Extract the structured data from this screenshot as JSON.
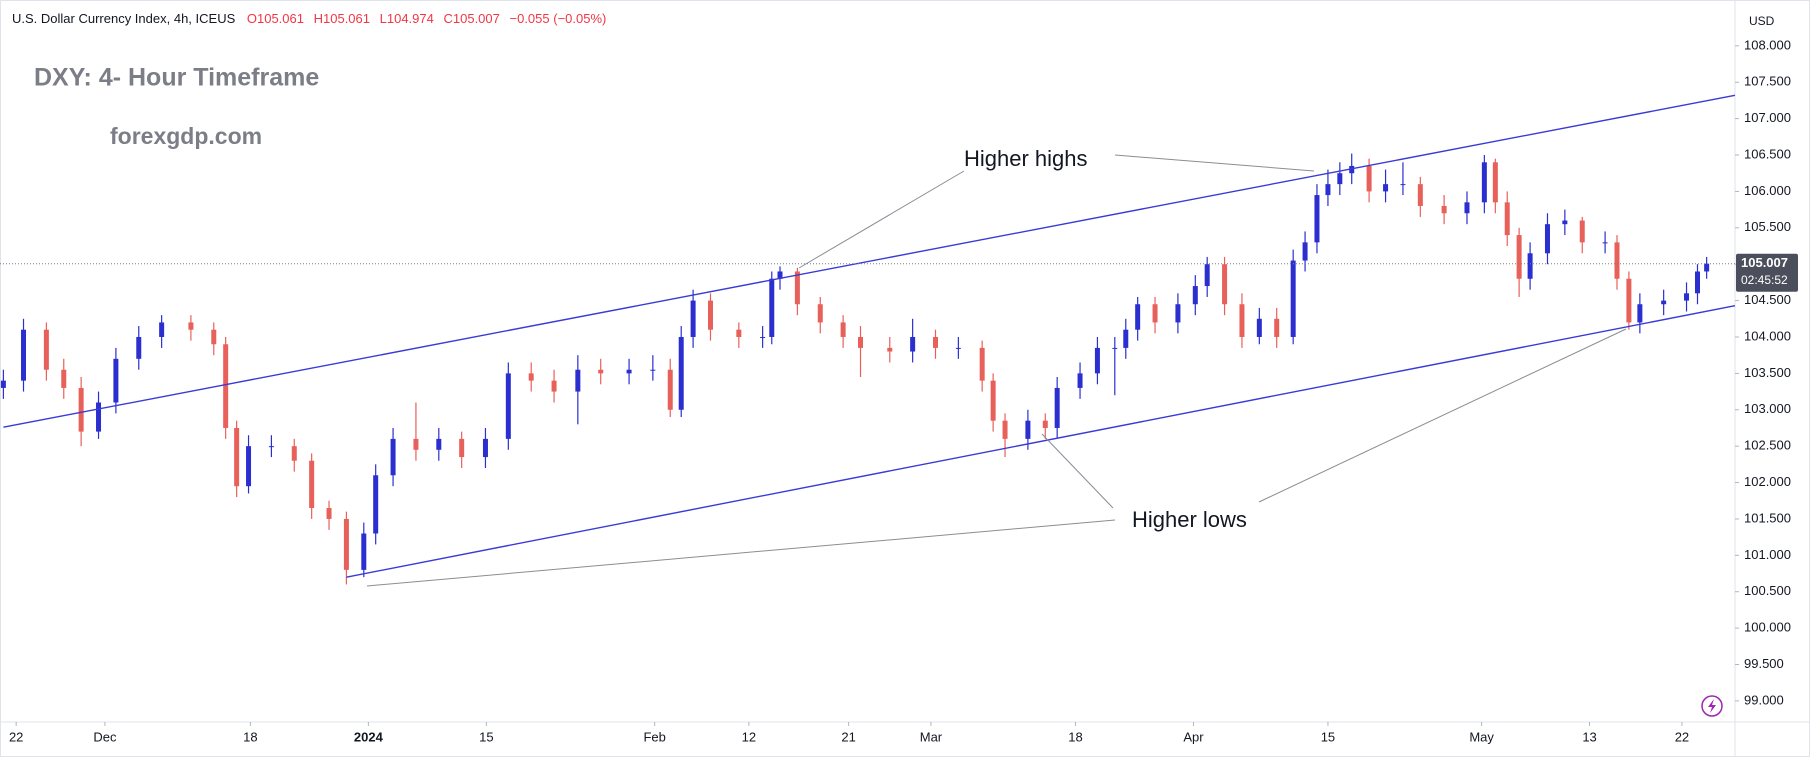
{
  "chart_data": {
    "type": "candlestick",
    "title": "U.S. Dollar Currency Index, 4h, ICEUS",
    "header_values": [
      "O105.061",
      "H105.061",
      "L104.974",
      "C105.007",
      "−0.055 (−0.05%)"
    ],
    "overlay_title": "DXY: 4- Hour Timeframe",
    "watermark": "forexgdp.com",
    "annotations": [
      "Higher highs",
      "Higher lows"
    ],
    "currency": "USD",
    "last_price": 105.007,
    "countdown": "02:45:52",
    "up_color": "#2b2fd0",
    "down_color": "#e8605a",
    "trendline_color": "#3a3ad6",
    "x": [
      -1.4,
      0.8,
      3.3,
      5.2,
      7.1,
      9.0,
      10.9,
      13.4,
      15.9,
      19.1,
      21.6,
      22.9,
      24.1,
      25.4,
      27.9,
      30.4,
      32.3,
      34.2,
      36.1,
      38.0,
      39.3,
      41.2,
      43.7,
      46.2,
      48.7,
      51.3,
      53.8,
      56.3,
      58.8,
      61.4,
      63.9,
      67.0,
      69.6,
      71.5,
      72.7,
      74.0,
      75.9,
      79.0,
      81.6,
      82.6,
      83.5,
      85.4,
      87.9,
      90.4,
      92.3,
      95.5,
      98.0,
      100.5,
      103.0,
      105.6,
      106.8,
      108.1,
      110.6,
      112.5,
      113.8,
      116.3,
      118.2,
      120.1,
      121.3,
      122.6,
      124.5,
      127.0,
      128.9,
      130.2,
      132.1,
      134.0,
      135.9,
      137.8,
      139.6,
      140.9,
      142.2,
      143.4,
      144.7,
      146.0,
      147.9,
      149.7,
      151.6,
      153.5,
      156.1,
      158.6,
      160.5,
      161.7,
      163.0,
      164.3,
      165.5,
      167.4,
      169.3,
      171.2,
      173.7,
      175.0,
      176.3,
      177.5,
      180.1,
      182.6,
      183.8,
      184.8
    ],
    "open": [
      103.3,
      103.4,
      104.1,
      103.55,
      103.3,
      102.7,
      103.1,
      103.7,
      104.0,
      104.2,
      104.1,
      103.9,
      102.75,
      101.95,
      102.5,
      102.5,
      102.3,
      101.65,
      101.5,
      100.8,
      101.3,
      102.1,
      102.6,
      102.45,
      102.6,
      102.35,
      102.6,
      103.5,
      103.4,
      103.25,
      103.55,
      103.5,
      103.55,
      103.55,
      103.0,
      104.0,
      104.5,
      104.1,
      104.0,
      104.0,
      104.8,
      104.9,
      104.45,
      104.2,
      104.0,
      103.85,
      103.8,
      104.0,
      103.85,
      103.85,
      103.4,
      102.85,
      102.6,
      102.85,
      102.75,
      103.3,
      103.5,
      103.85,
      103.85,
      104.1,
      104.45,
      104.2,
      104.45,
      104.7,
      105.0,
      104.45,
      104.0,
      104.25,
      104.0,
      105.05,
      105.3,
      105.95,
      106.1,
      106.25,
      106.35,
      106.0,
      106.1,
      106.1,
      105.8,
      105.7,
      105.85,
      106.4,
      105.85,
      105.4,
      104.8,
      105.15,
      105.55,
      105.6,
      105.3,
      105.3,
      104.8,
      104.2,
      104.45,
      104.5,
      104.6,
      104.9
    ],
    "high": [
      103.55,
      104.25,
      104.2,
      103.7,
      103.45,
      103.25,
      103.85,
      104.15,
      104.3,
      104.3,
      104.2,
      104.0,
      102.85,
      102.65,
      102.65,
      102.6,
      102.4,
      101.75,
      101.6,
      101.45,
      102.25,
      102.75,
      103.1,
      102.75,
      102.7,
      102.75,
      103.65,
      103.65,
      103.55,
      103.75,
      103.7,
      103.7,
      103.75,
      103.7,
      104.15,
      104.65,
      104.6,
      104.2,
      104.15,
      104.9,
      104.97,
      104.95,
      104.55,
      104.3,
      104.15,
      104.0,
      104.25,
      104.1,
      104.0,
      103.95,
      103.5,
      102.95,
      103.0,
      102.95,
      103.45,
      103.65,
      104.0,
      104.0,
      104.25,
      104.55,
      104.55,
      104.6,
      104.85,
      105.1,
      105.1,
      104.6,
      104.4,
      104.4,
      105.2,
      105.45,
      106.1,
      106.3,
      106.4,
      106.52,
      106.45,
      106.3,
      106.4,
      106.2,
      105.95,
      106.0,
      106.5,
      106.45,
      106.0,
      105.5,
      105.3,
      105.7,
      105.75,
      105.65,
      105.45,
      105.4,
      104.9,
      104.6,
      104.65,
      104.75,
      105.0,
      105.1
    ],
    "low": [
      103.15,
      103.25,
      103.4,
      103.15,
      102.5,
      102.6,
      102.95,
      103.55,
      103.85,
      103.95,
      103.75,
      102.6,
      101.8,
      101.85,
      102.35,
      102.15,
      101.5,
      101.35,
      100.6,
      100.7,
      101.15,
      101.95,
      102.3,
      102.3,
      102.2,
      102.2,
      102.45,
      103.25,
      103.1,
      102.8,
      103.35,
      103.35,
      103.4,
      102.9,
      102.9,
      103.85,
      103.95,
      103.85,
      103.85,
      103.9,
      104.65,
      104.3,
      104.05,
      103.85,
      103.45,
      103.65,
      103.65,
      103.7,
      103.7,
      103.25,
      102.7,
      102.35,
      102.45,
      102.6,
      102.6,
      103.15,
      103.35,
      103.2,
      103.7,
      103.95,
      104.05,
      104.05,
      104.3,
      104.55,
      104.3,
      103.85,
      103.9,
      103.85,
      103.9,
      104.9,
      105.15,
      105.8,
      105.95,
      106.1,
      105.85,
      105.85,
      105.95,
      105.65,
      105.55,
      105.55,
      105.7,
      105.7,
      105.25,
      104.55,
      104.65,
      105.0,
      105.4,
      105.15,
      105.15,
      104.65,
      104.1,
      104.05,
      104.3,
      104.35,
      104.45,
      104.8
    ],
    "close": [
      103.4,
      104.1,
      103.55,
      103.3,
      102.7,
      103.1,
      103.7,
      104.0,
      104.2,
      104.1,
      103.9,
      102.75,
      101.95,
      102.5,
      102.5,
      102.3,
      101.65,
      101.5,
      100.8,
      101.3,
      102.1,
      102.6,
      102.45,
      102.6,
      102.35,
      102.6,
      103.5,
      103.4,
      103.25,
      103.55,
      103.5,
      103.55,
      103.55,
      103.0,
      104.0,
      104.5,
      104.1,
      104.0,
      104.0,
      104.8,
      104.9,
      104.45,
      104.2,
      104.0,
      103.85,
      103.8,
      104.0,
      103.85,
      103.85,
      103.4,
      102.85,
      102.6,
      102.85,
      102.75,
      103.3,
      103.5,
      103.85,
      103.85,
      104.1,
      104.45,
      104.2,
      104.45,
      104.7,
      105.0,
      104.45,
      104.0,
      104.25,
      104.0,
      105.05,
      105.3,
      105.95,
      106.1,
      106.25,
      106.35,
      106.0,
      106.1,
      106.1,
      105.8,
      105.7,
      105.85,
      106.4,
      105.85,
      105.4,
      104.8,
      105.15,
      105.55,
      105.6,
      105.3,
      105.3,
      104.8,
      104.2,
      104.45,
      104.5,
      104.6,
      104.9,
      105.007
    ],
    "trendlines": [
      {
        "x": [
          -1.4,
          187.9
        ],
        "y": [
          102.76,
          107.32
        ]
      },
      {
        "x": [
          36.1,
          187.9
        ],
        "y": [
          100.7,
          104.43
        ]
      }
    ],
    "xlim": [
      -1.77,
      187.9
    ],
    "ylim": [
      98.71,
      108.63
    ],
    "xticks": [
      {
        "value": 0,
        "label": "22"
      },
      {
        "value": 9.7,
        "label": "Dec"
      },
      {
        "value": 25.6,
        "label": "18"
      },
      {
        "value": 38.5,
        "label": "2024"
      },
      {
        "value": 51.4,
        "label": "15"
      },
      {
        "value": 69.8,
        "label": "Feb"
      },
      {
        "value": 80.1,
        "label": "12"
      },
      {
        "value": 91.0,
        "label": "21"
      },
      {
        "value": 100,
        "label": "Mar"
      },
      {
        "value": 115.8,
        "label": "18"
      },
      {
        "value": 128.7,
        "label": "Apr"
      },
      {
        "value": 143.4,
        "label": "15"
      },
      {
        "value": 160.2,
        "label": "May"
      },
      {
        "value": 172.0,
        "label": "13"
      },
      {
        "value": 182.1,
        "label": "22"
      }
    ],
    "yticks": [
      {
        "value": 99,
        "label": "99.000"
      },
      {
        "value": 99.5,
        "label": "99.500"
      },
      {
        "value": 100,
        "label": "100.000"
      },
      {
        "value": 100.5,
        "label": "100.500"
      },
      {
        "value": 101,
        "label": "101.000"
      },
      {
        "value": 101.5,
        "label": "101.500"
      },
      {
        "value": 102,
        "label": "102.000"
      },
      {
        "value": 102.5,
        "label": "102.500"
      },
      {
        "value": 103,
        "label": "103.000"
      },
      {
        "value": 103.5,
        "label": "103.500"
      },
      {
        "value": 104,
        "label": "104.000"
      },
      {
        "value": 104.5,
        "label": "104.500"
      },
      {
        "value": 105,
        "label": "105.000"
      },
      {
        "value": 105.5,
        "label": "105.500"
      },
      {
        "value": 106,
        "label": "106.000"
      },
      {
        "value": 106.5,
        "label": "106.500"
      },
      {
        "value": 107,
        "label": "107.000"
      },
      {
        "value": 107.5,
        "label": "107.500"
      },
      {
        "value": 108,
        "label": "108.000"
      }
    ]
  }
}
